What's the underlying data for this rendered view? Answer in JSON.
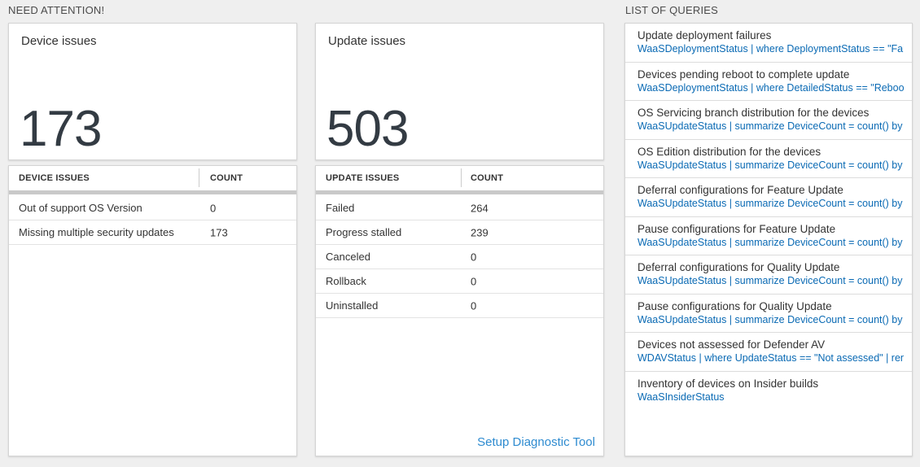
{
  "sections": {
    "need_attention": "NEED ATTENTION!",
    "list_of_queries": "LIST OF QUERIES"
  },
  "device_card": {
    "title": "Device issues",
    "big_number": "173",
    "table": {
      "col1": "DEVICE ISSUES",
      "col2": "COUNT",
      "rows": [
        {
          "name": "Out of support OS Version",
          "count": "0"
        },
        {
          "name": "Missing multiple security updates",
          "count": "173"
        }
      ]
    }
  },
  "update_card": {
    "title": "Update issues",
    "big_number": "503",
    "table": {
      "col1": "UPDATE ISSUES",
      "col2": "COUNT",
      "rows": [
        {
          "name": "Failed",
          "count": "264"
        },
        {
          "name": "Progress stalled",
          "count": "239"
        },
        {
          "name": "Canceled",
          "count": "0"
        },
        {
          "name": "Rollback",
          "count": "0"
        },
        {
          "name": "Uninstalled",
          "count": "0"
        }
      ]
    },
    "setup_link": "Setup Diagnostic Tool"
  },
  "queries": {
    "items": [
      {
        "title": "Update deployment failures",
        "query": "WaaSDeploymentStatus | where DeploymentStatus == \"Failed\" |..."
      },
      {
        "title": "Devices pending reboot to complete update",
        "query": "WaaSDeploymentStatus | where DetailedStatus == \"Reboot pend..."
      },
      {
        "title": "OS Servicing branch distribution for the devices",
        "query": "WaaSUpdateStatus | summarize DeviceCount = count() by OSSer..."
      },
      {
        "title": "OS Edition distribution for the devices",
        "query": "WaaSUpdateStatus | summarize DeviceCount = count() by OSEdit..."
      },
      {
        "title": "Deferral configurations for Feature Update",
        "query": "WaaSUpdateStatus | summarize DeviceCount = count() by Featur..."
      },
      {
        "title": "Pause configurations for Feature Update",
        "query": "WaaSUpdateStatus | summarize DeviceCount = count() by Featur..."
      },
      {
        "title": "Deferral configurations for Quality Update",
        "query": "WaaSUpdateStatus | summarize DeviceCount = count() by Qualit..."
      },
      {
        "title": "Pause configurations for Quality Update",
        "query": "WaaSUpdateStatus | summarize DeviceCount = count() by Qualit..."
      },
      {
        "title": "Devices not assessed for Defender AV",
        "query": "WDAVStatus | where UpdateStatus == \"Not assessed\" | render ta..."
      },
      {
        "title": "Inventory of devices on Insider builds",
        "query": "WaaSInsiderStatus"
      }
    ]
  },
  "colors": {
    "page_bg": "#efefef",
    "card_border": "#d4d4d4",
    "label_gray": "#4b4b4b",
    "text_dark": "#333333",
    "number_dark": "#333b43",
    "scrollbar_gray": "#c9c9c9",
    "divider_gray": "#cccccc",
    "row_line": "#e3e3e3",
    "item_line": "#dcdcdc",
    "link_blue": "#0a6ab4",
    "setup_blue": "#2e8bd0"
  }
}
